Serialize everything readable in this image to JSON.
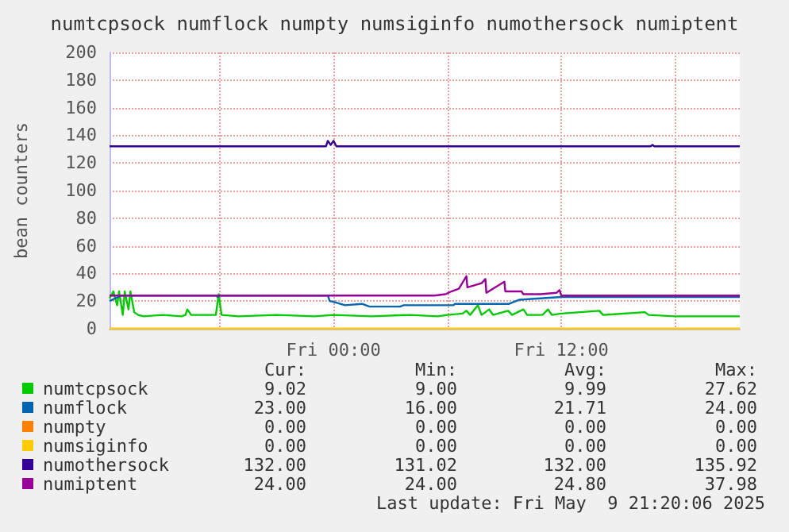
{
  "chart_data": {
    "type": "line",
    "title": "numtcpsock numflock numpty numsiginfo numothersock numiptent",
    "ylabel": "bean counters",
    "xlim": [
      "2025-05-08T12:12",
      "2025-05-09T21:24"
    ],
    "xticks": [
      {
        "value": "2025-05-08T18:00",
        "label": null
      },
      {
        "value": "2025-05-09T00:00",
        "label": "Fri 00:00"
      },
      {
        "value": "2025-05-09T06:00",
        "label": null
      },
      {
        "value": "2025-05-09T12:00",
        "label": "Fri 12:00"
      },
      {
        "value": "2025-05-09T18:00",
        "label": null
      }
    ],
    "ylim": [
      0,
      200
    ],
    "yticks": [
      0,
      20,
      40,
      60,
      80,
      100,
      120,
      140,
      160,
      180,
      200
    ],
    "grid": true,
    "legend": "bottom",
    "marker": "none",
    "line_style": "solid",
    "series": [
      {
        "name": "numtcpsock",
        "color": "#00cc00",
        "x": [
          "2025-05-08T12:12",
          "2025-05-08T12:24",
          "2025-05-08T12:36",
          "2025-05-08T12:42",
          "2025-05-08T12:54",
          "2025-05-08T13:00",
          "2025-05-08T13:12",
          "2025-05-08T13:18",
          "2025-05-08T13:30",
          "2025-05-08T13:42",
          "2025-05-08T14:00",
          "2025-05-08T15:00",
          "2025-05-08T16:00",
          "2025-05-08T16:12",
          "2025-05-08T16:18",
          "2025-05-08T16:30",
          "2025-05-08T17:00",
          "2025-05-08T17:30",
          "2025-05-08T17:48",
          "2025-05-08T17:57",
          "2025-05-08T18:06",
          "2025-05-08T19:00",
          "2025-05-08T21:00",
          "2025-05-08T23:00",
          "2025-05-09T00:00",
          "2025-05-09T02:00",
          "2025-05-09T04:00",
          "2025-05-09T05:30",
          "2025-05-09T06:00",
          "2025-05-09T06:48",
          "2025-05-09T07:00",
          "2025-05-09T07:12",
          "2025-05-09T07:36",
          "2025-05-09T07:48",
          "2025-05-09T08:12",
          "2025-05-09T08:24",
          "2025-05-09T09:12",
          "2025-05-09T09:24",
          "2025-05-09T10:00",
          "2025-05-09T10:12",
          "2025-05-09T11:00",
          "2025-05-09T11:18",
          "2025-05-09T11:30",
          "2025-05-09T12:00",
          "2025-05-09T14:00",
          "2025-05-09T14:12",
          "2025-05-09T16:24",
          "2025-05-09T16:36",
          "2025-05-09T18:00",
          "2025-05-09T21:24"
        ],
        "values": [
          22,
          27,
          17,
          27,
          10,
          27,
          14,
          27,
          12,
          10,
          9,
          10,
          9,
          10,
          14,
          10,
          10,
          10,
          10,
          25,
          10,
          9,
          10,
          9,
          10,
          9,
          10,
          9,
          10,
          11,
          13,
          10,
          17,
          10,
          14,
          10,
          13,
          10,
          14,
          10,
          10,
          14,
          10,
          11,
          13,
          10,
          12,
          10,
          9,
          9
        ]
      },
      {
        "name": "numflock",
        "color": "#0066b3",
        "x": [
          "2025-05-08T12:12",
          "2025-05-08T12:30",
          "2025-05-08T12:48",
          "2025-05-08T17:48",
          "2025-05-08T17:54",
          "2025-05-08T18:00",
          "2025-05-08T23:42",
          "2025-05-08T23:48",
          "2025-05-09T00:06",
          "2025-05-09T00:36",
          "2025-05-09T01:30",
          "2025-05-09T01:54",
          "2025-05-09T03:30",
          "2025-05-09T03:42",
          "2025-05-09T06:18",
          "2025-05-09T06:24",
          "2025-05-09T09:15",
          "2025-05-09T09:48",
          "2025-05-09T12:00",
          "2025-05-09T21:24"
        ],
        "values": [
          20,
          22,
          24,
          24,
          23,
          24,
          24,
          20,
          19,
          17,
          18,
          16,
          16,
          17,
          17,
          18,
          18,
          21,
          23,
          23
        ]
      },
      {
        "name": "numpty",
        "color": "#ff8000",
        "x": [
          "2025-05-08T12:12",
          "2025-05-09T21:24"
        ],
        "values": [
          0,
          0
        ]
      },
      {
        "name": "numsiginfo",
        "color": "#ffcc00",
        "x": [
          "2025-05-08T12:12",
          "2025-05-09T21:24"
        ],
        "values": [
          0,
          0
        ]
      },
      {
        "name": "numothersock",
        "color": "#330099",
        "x": [
          "2025-05-08T12:12",
          "2025-05-08T23:36",
          "2025-05-08T23:42",
          "2025-05-08T23:51",
          "2025-05-09T00:00",
          "2025-05-09T00:09",
          "2025-05-09T16:42",
          "2025-05-09T16:48",
          "2025-05-09T16:54",
          "2025-05-09T21:24"
        ],
        "values": [
          132,
          132,
          136,
          133,
          136,
          132,
          132,
          133,
          132,
          132
        ]
      },
      {
        "name": "numiptent",
        "color": "#990099",
        "x": [
          "2025-05-08T12:12",
          "2025-05-09T05:18",
          "2025-05-09T05:54",
          "2025-05-09T06:12",
          "2025-05-09T06:36",
          "2025-05-09T07:00",
          "2025-05-09T07:03",
          "2025-05-09T07:48",
          "2025-05-09T08:00",
          "2025-05-09T08:03",
          "2025-05-09T09:00",
          "2025-05-09T09:03",
          "2025-05-09T09:54",
          "2025-05-09T10:00",
          "2025-05-09T10:54",
          "2025-05-09T11:45",
          "2025-05-09T11:54",
          "2025-05-09T12:00",
          "2025-05-09T21:24"
        ],
        "values": [
          24,
          24,
          25,
          27,
          29,
          38,
          30,
          33,
          36,
          26,
          34,
          27,
          27,
          25,
          25,
          26,
          28,
          24,
          24
        ]
      }
    ],
    "annotations": [
      "Cur:",
      "Min:",
      "Avg:",
      "Max:",
      "9.02",
      "9.00",
      "9.99",
      "27.62",
      "23.00",
      "16.00",
      "21.71",
      "24.00",
      "0.00",
      "0.00",
      "0.00",
      "0.00",
      "0.00",
      "0.00",
      "0.00",
      "0.00",
      "132.00",
      "131.02",
      "132.00",
      "135.92",
      "24.00",
      "24.00",
      "24.80",
      "37.98",
      "Last update: Fri May  9 21:20:06 2025"
    ]
  }
}
